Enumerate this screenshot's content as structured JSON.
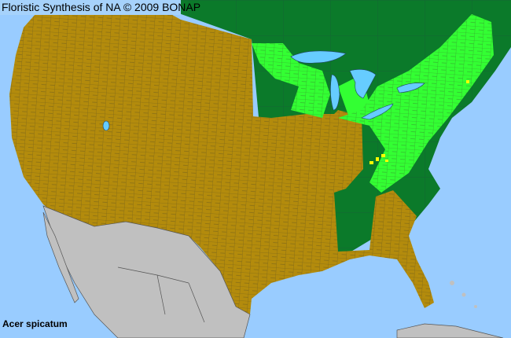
{
  "header": {
    "title": "Floristic Synthesis of NA © 2009 BONAP"
  },
  "map": {
    "species": "Acer spicatum",
    "colors": {
      "ocean": "#99ccff",
      "native_state": "#0b7a2a",
      "present_not_rare": "#33ff33",
      "absent_county": "#b38b0c",
      "rare": "#ffff00",
      "outside_range": "#c0c0c0",
      "lakes": "#66ccff"
    }
  }
}
